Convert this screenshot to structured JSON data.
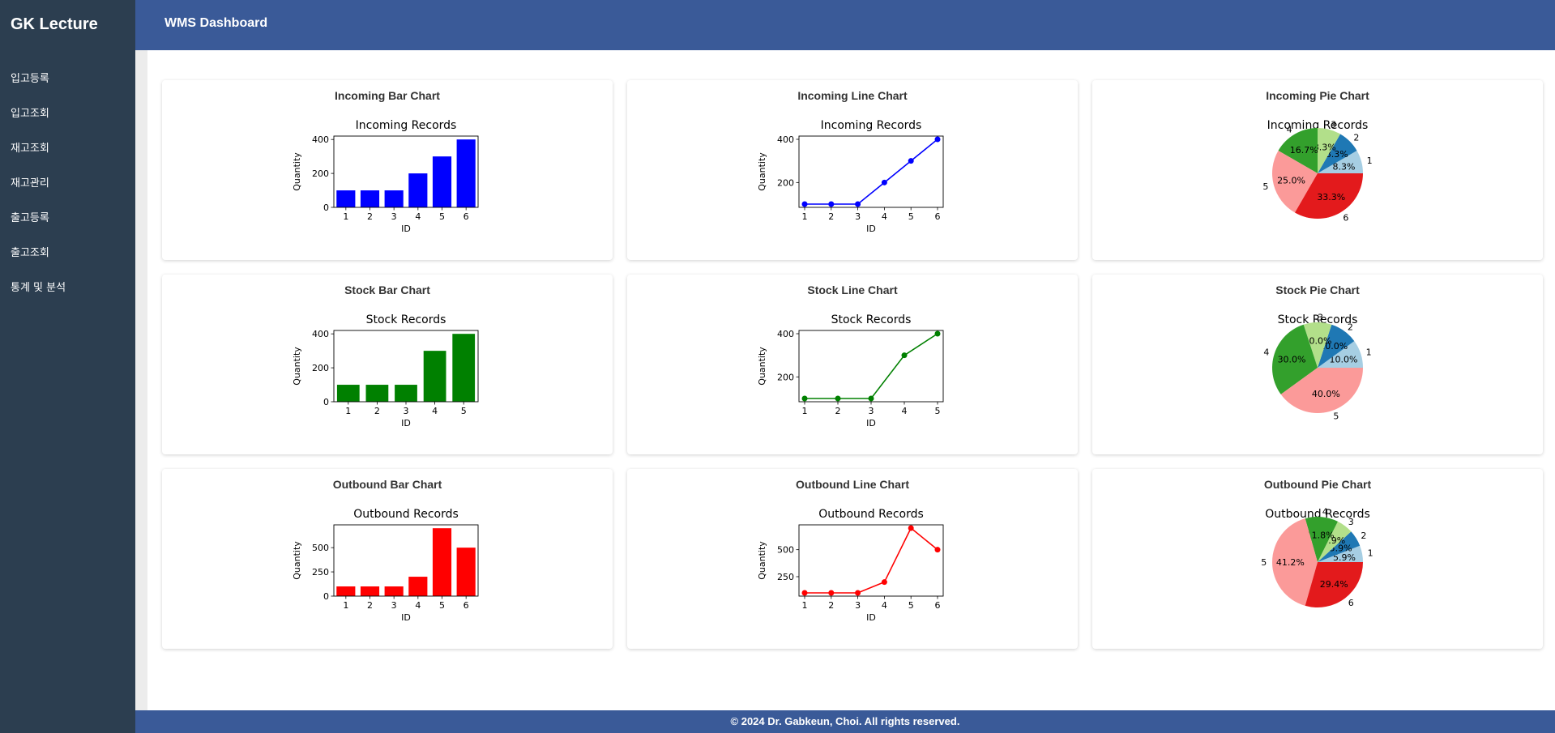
{
  "sidebar": {
    "brand": "GK Lecture",
    "items": [
      {
        "label": "입고등록"
      },
      {
        "label": "입고조회"
      },
      {
        "label": "재고조회"
      },
      {
        "label": "재고관리"
      },
      {
        "label": "출고등록"
      },
      {
        "label": "출고조회"
      },
      {
        "label": "통계 및 분석"
      }
    ]
  },
  "header": {
    "title": "WMS Dashboard"
  },
  "footer": {
    "text": "© 2024 Dr. Gabkeun, Choi. All rights reserved."
  },
  "colors": {
    "incoming": "#0000ff",
    "stock": "#008000",
    "outbound": "#ff0000",
    "pie": [
      "#a6cee3",
      "#1f78b4",
      "#b2df8a",
      "#33a02c",
      "#fb9a99",
      "#e31a1c"
    ]
  },
  "chart_data": [
    {
      "card_title": "Incoming Bar Chart",
      "type": "bar",
      "title": "Incoming Records",
      "xlabel": "ID",
      "ylabel": "Quantity",
      "categories": [
        "1",
        "2",
        "3",
        "4",
        "5",
        "6"
      ],
      "values": [
        100,
        100,
        100,
        200,
        300,
        400
      ],
      "ylim": [
        0,
        420
      ],
      "yticks": [
        0,
        200,
        400
      ],
      "color_key": "incoming"
    },
    {
      "card_title": "Incoming Line Chart",
      "type": "line",
      "title": "Incoming Records",
      "xlabel": "ID",
      "ylabel": "Quantity",
      "categories": [
        "1",
        "2",
        "3",
        "4",
        "5",
        "6"
      ],
      "values": [
        100,
        100,
        100,
        200,
        300,
        400
      ],
      "ylim": [
        85,
        415
      ],
      "yticks": [
        200,
        400
      ],
      "color_key": "incoming"
    },
    {
      "card_title": "Incoming Pie Chart",
      "type": "pie",
      "title": "Incoming Records",
      "labels": [
        "1",
        "2",
        "3",
        "4",
        "5",
        "6"
      ],
      "values": [
        100,
        100,
        100,
        200,
        300,
        400
      ],
      "pct_labels": [
        "8.3%",
        "8.3%",
        "8.3%",
        "16.7%",
        "25.0%",
        "33.3%"
      ]
    },
    {
      "card_title": "Stock Bar Chart",
      "type": "bar",
      "title": "Stock Records",
      "xlabel": "ID",
      "ylabel": "Quantity",
      "categories": [
        "1",
        "2",
        "3",
        "4",
        "5"
      ],
      "values": [
        100,
        100,
        100,
        300,
        400
      ],
      "ylim": [
        0,
        420
      ],
      "yticks": [
        0,
        200,
        400
      ],
      "color_key": "stock"
    },
    {
      "card_title": "Stock Line Chart",
      "type": "line",
      "title": "Stock Records",
      "xlabel": "ID",
      "ylabel": "Quantity",
      "categories": [
        "1",
        "2",
        "3",
        "4",
        "5"
      ],
      "values": [
        100,
        100,
        100,
        300,
        400
      ],
      "ylim": [
        85,
        415
      ],
      "yticks": [
        200,
        400
      ],
      "color_key": "stock"
    },
    {
      "card_title": "Stock Pie Chart",
      "type": "pie",
      "title": "Stock Records",
      "labels": [
        "1",
        "2",
        "3",
        "4",
        "5"
      ],
      "values": [
        100,
        100,
        100,
        300,
        400
      ],
      "pct_labels": [
        "10.0%",
        "10.0%",
        "10.0%",
        "30.0%",
        "40.0%"
      ]
    },
    {
      "card_title": "Outbound Bar Chart",
      "type": "bar",
      "title": "Outbound Records",
      "xlabel": "ID",
      "ylabel": "Quantity",
      "categories": [
        "1",
        "2",
        "3",
        "4",
        "5",
        "6"
      ],
      "values": [
        100,
        100,
        100,
        200,
        700,
        500
      ],
      "ylim": [
        0,
        735
      ],
      "yticks": [
        0,
        250,
        500
      ],
      "color_key": "outbound"
    },
    {
      "card_title": "Outbound Line Chart",
      "type": "line",
      "title": "Outbound Records",
      "xlabel": "ID",
      "ylabel": "Quantity",
      "categories": [
        "1",
        "2",
        "3",
        "4",
        "5",
        "6"
      ],
      "values": [
        100,
        100,
        100,
        200,
        700,
        500
      ],
      "ylim": [
        70,
        730
      ],
      "yticks": [
        250,
        500
      ],
      "color_key": "outbound"
    },
    {
      "card_title": "Outbound Pie Chart",
      "type": "pie",
      "title": "Outbound Records",
      "labels": [
        "1",
        "2",
        "3",
        "4",
        "5",
        "6"
      ],
      "values": [
        100,
        100,
        100,
        200,
        700,
        500
      ],
      "pct_labels": [
        "5.9%",
        "5.9%",
        "5.9%",
        "11.8%",
        "41.2%",
        "29.4%"
      ]
    }
  ]
}
